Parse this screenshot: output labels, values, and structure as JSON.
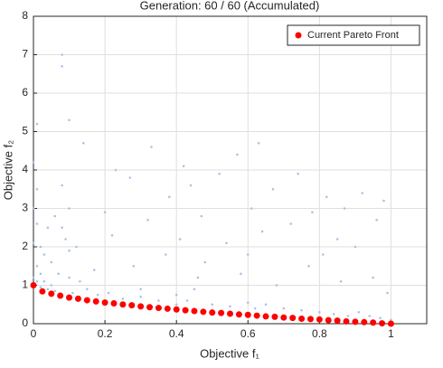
{
  "chart_data": {
    "type": "scatter",
    "title": "Generation: 60 / 60 (Accumulated)",
    "xlabel": "Objective f₁",
    "ylabel": "Objective f₂",
    "xlim": [
      0,
      1.1
    ],
    "xticks": [
      0,
      0.2,
      0.4,
      0.6,
      0.8,
      1
    ],
    "ylim": [
      0,
      8
    ],
    "yticks": [
      0,
      1,
      2,
      3,
      4,
      5,
      6,
      7,
      8
    ],
    "grid": true,
    "legend": "northeast",
    "series": [
      {
        "color": "#a9c2e6",
        "x": [
          0,
          0,
          0,
          0,
          0.01,
          0.01,
          0.01,
          0.01,
          0.01,
          0.02,
          0.02,
          0.02,
          0.03,
          0.03,
          0.04,
          0.04,
          0.05,
          0.05,
          0.06,
          0.07,
          0.08,
          0.08,
          0.09,
          0.1,
          0.1,
          0.1,
          0.11,
          0.12,
          0.13,
          0.14,
          0.15,
          0.17,
          0.18,
          0.2,
          0.21,
          0.22,
          0.23,
          0.25,
          0.27,
          0.28,
          0.3,
          0.32,
          0.33,
          0.35,
          0.37,
          0.38,
          0.4,
          0.41,
          0.42,
          0.43,
          0.44,
          0.45,
          0.46,
          0.47,
          0.48,
          0.5,
          0.52,
          0.54,
          0.55,
          0.57,
          0.58,
          0.6,
          0.6,
          0.61,
          0.62,
          0.63,
          0.64,
          0.65,
          0.67,
          0.68,
          0.7,
          0.72,
          0.74,
          0.75,
          0.77,
          0.78,
          0.8,
          0.81,
          0.82,
          0.84,
          0.85,
          0.86,
          0.87,
          0.88,
          0.9,
          0.91,
          0.92,
          0.94,
          0.95,
          0.96,
          0.97,
          0.98,
          0.99,
          1,
          0.08,
          0.08,
          0.1,
          0.06,
          0.3,
          0.4
        ],
        "values": [
          1.2,
          2.1,
          3,
          4.2,
          1.5,
          2.6,
          3.5,
          5.2,
          1.1,
          1.3,
          2,
          0.95,
          1.1,
          1.8,
          0.9,
          2.5,
          1,
          1.6,
          0.85,
          1.3,
          6.7,
          7,
          2.2,
          1.2,
          3,
          5.3,
          0.8,
          2,
          1.1,
          4.7,
          0.9,
          1.4,
          0.75,
          2.9,
          0.8,
          2.3,
          4,
          0.65,
          3.8,
          1.5,
          0.7,
          2.7,
          4.6,
          0.6,
          1.8,
          3.3,
          0.75,
          2.2,
          4.1,
          0.6,
          3.6,
          0.9,
          1.2,
          2.8,
          1.6,
          0.5,
          3.9,
          2.1,
          0.45,
          4.4,
          1.3,
          0.55,
          1.8,
          3,
          0.4,
          4.7,
          2.4,
          0.5,
          3.5,
          1,
          0.4,
          2.6,
          3.9,
          0.35,
          1.5,
          2.9,
          0.3,
          1.8,
          3.3,
          0.25,
          2.2,
          1.1,
          3,
          0.2,
          2,
          0.3,
          3.4,
          0.2,
          1.2,
          2.7,
          0.15,
          3.2,
          0.8,
          0.1,
          3.6,
          2.5,
          1.9,
          2.8,
          0.9,
          0.5
        ]
      },
      {
        "name": "Current Pareto Front",
        "color": "#ff0000",
        "x": [
          0,
          0.025,
          0.05,
          0.075,
          0.1,
          0.125,
          0.15,
          0.175,
          0.2,
          0.225,
          0.25,
          0.275,
          0.3,
          0.325,
          0.35,
          0.375,
          0.4,
          0.425,
          0.45,
          0.475,
          0.5,
          0.525,
          0.55,
          0.575,
          0.6,
          0.625,
          0.65,
          0.675,
          0.7,
          0.725,
          0.75,
          0.775,
          0.8,
          0.825,
          0.85,
          0.875,
          0.9,
          0.925,
          0.95,
          0.975,
          1
        ],
        "values": [
          1,
          0.84,
          0.78,
          0.73,
          0.68,
          0.65,
          0.61,
          0.58,
          0.55,
          0.53,
          0.5,
          0.48,
          0.45,
          0.43,
          0.41,
          0.39,
          0.37,
          0.35,
          0.33,
          0.31,
          0.29,
          0.28,
          0.26,
          0.24,
          0.23,
          0.21,
          0.19,
          0.18,
          0.16,
          0.15,
          0.13,
          0.12,
          0.11,
          0.09,
          0.08,
          0.06,
          0.05,
          0.04,
          0.03,
          0.01,
          0
        ]
      }
    ]
  }
}
